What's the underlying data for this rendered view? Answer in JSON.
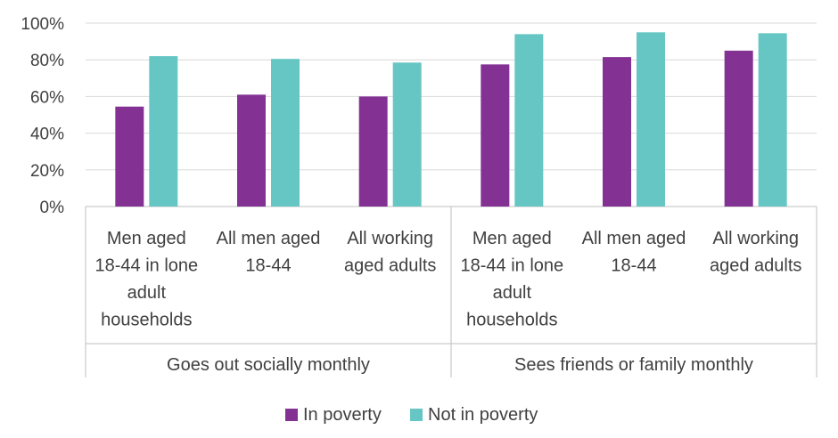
{
  "chart_data": {
    "type": "bar",
    "title": "",
    "xlabel": "",
    "ylabel": "",
    "ylim": [
      0,
      100
    ],
    "yticks": [
      "0%",
      "20%",
      "40%",
      "60%",
      "80%",
      "100%"
    ],
    "ytick_values": [
      0,
      20,
      40,
      60,
      80,
      100
    ],
    "grid": true,
    "legend_position": "bottom",
    "groups": [
      {
        "label": "Goes out socially monthly",
        "categories": [
          [
            "Men aged",
            "18-44 in lone",
            "adult",
            "households"
          ],
          [
            "All men aged",
            "18-44"
          ],
          [
            "All working",
            "aged adults"
          ]
        ]
      },
      {
        "label": "Sees friends or family monthly",
        "categories": [
          [
            "Men aged",
            "18-44 in lone",
            "adult",
            "households"
          ],
          [
            "All men aged",
            "18-44"
          ],
          [
            "All working",
            "aged adults"
          ]
        ]
      }
    ],
    "series": [
      {
        "name": "In poverty",
        "color": "#833294",
        "values": [
          54.5,
          61,
          60,
          77.5,
          81.5,
          85
        ]
      },
      {
        "name": "Not in poverty",
        "color": "#66c6c3",
        "values": [
          82,
          80.5,
          78.5,
          94,
          95,
          94.5
        ]
      }
    ]
  }
}
